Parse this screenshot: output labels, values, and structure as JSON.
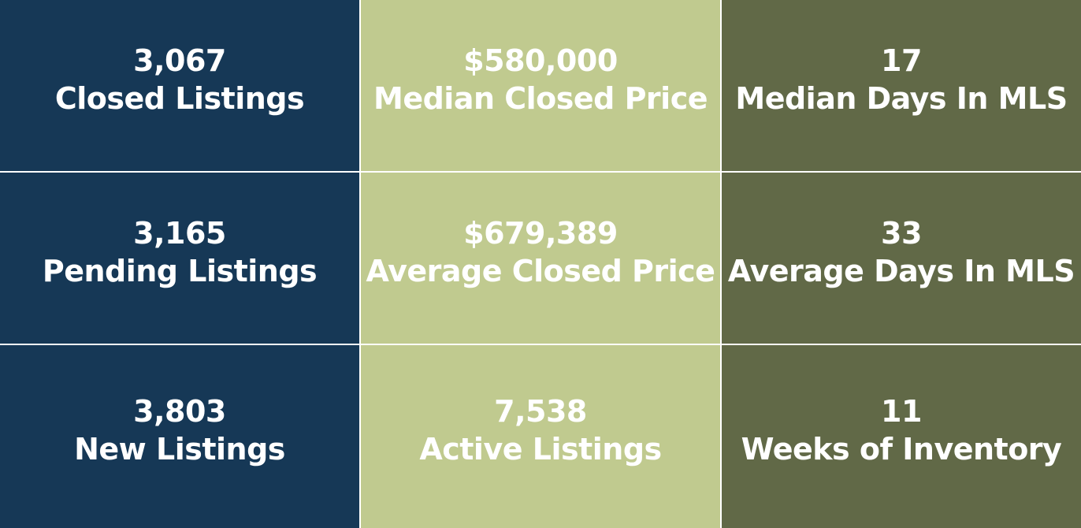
{
  "colors": {
    "navy": "#163856",
    "sage": "#c0ca8f",
    "olive": "#616947",
    "text": "#ffffff",
    "divider": "#ffffff"
  },
  "stats": [
    {
      "value": "3,067",
      "label": "Closed Listings"
    },
    {
      "value": "$580,000",
      "label": "Median Closed Price"
    },
    {
      "value": "17",
      "label": "Median Days In MLS"
    },
    {
      "value": "3,165",
      "label": "Pending Listings"
    },
    {
      "value": "$679,389",
      "label": "Average Closed Price"
    },
    {
      "value": "33",
      "label": "Average Days In MLS"
    },
    {
      "value": "3,803",
      "label": "New Listings"
    },
    {
      "value": "7,538",
      "label": "Active Listings"
    },
    {
      "value": "11",
      "label": "Weeks of Inventory"
    }
  ]
}
